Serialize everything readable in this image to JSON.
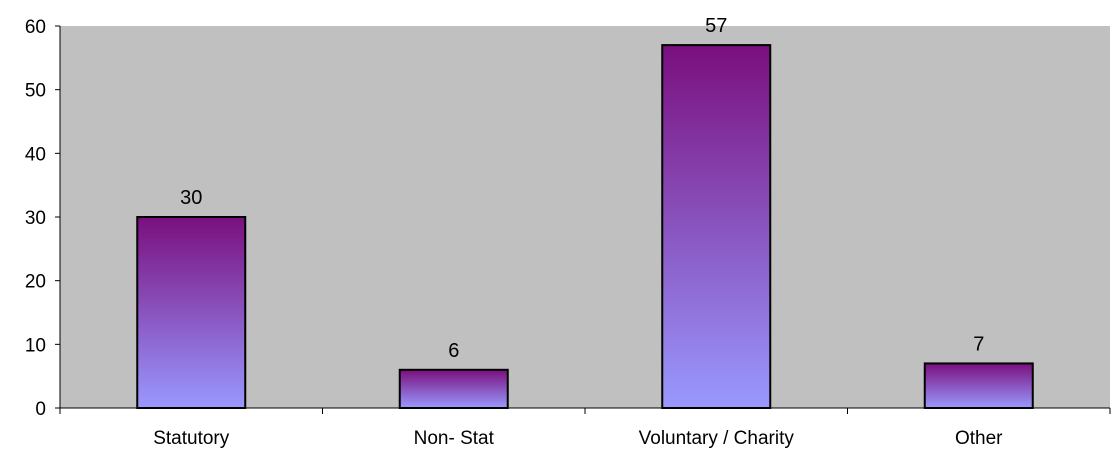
{
  "chart_data": {
    "type": "bar",
    "categories": [
      "Statutory",
      "Non- Stat",
      "Voluntary / Charity",
      "Other"
    ],
    "values": [
      30,
      6,
      57,
      7
    ],
    "ylim": [
      0,
      60
    ],
    "yticks": [
      0,
      10,
      20,
      30,
      40,
      50,
      60
    ],
    "grid": false,
    "legend": "none",
    "data_labels": true,
    "colors": {
      "plot_background": "#c0c0c0",
      "bar_top": "#7a0f7e",
      "bar_bottom": "#9999ff",
      "bar_outline": "#000000",
      "axis": "#000000"
    }
  }
}
